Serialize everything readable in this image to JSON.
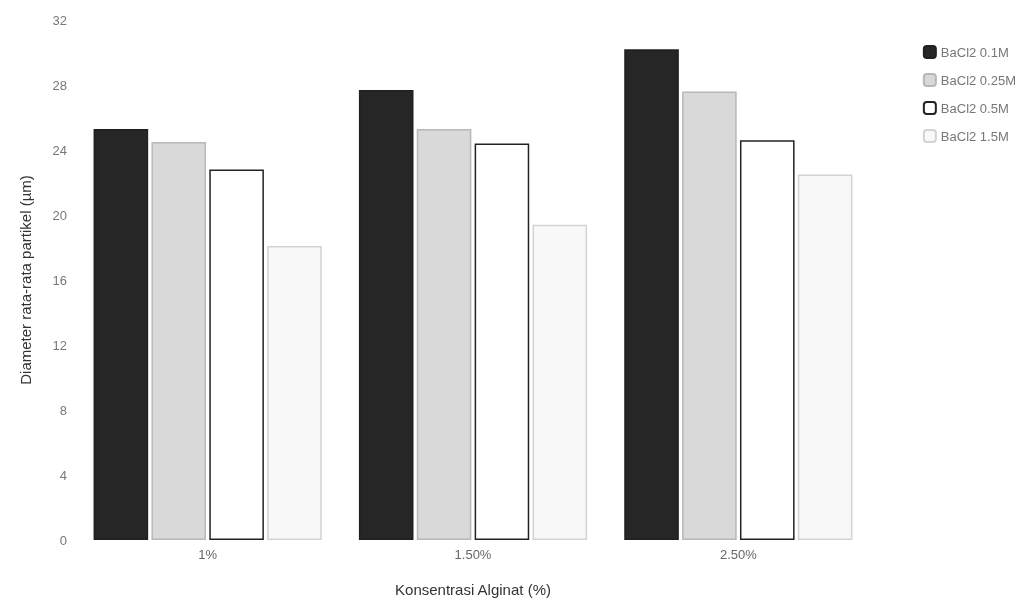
{
  "chart_data": {
    "type": "bar",
    "xlabel": "Konsentrasi Alginat (%)",
    "ylabel": "Diameter rata-rata partikel (µm)",
    "categories": [
      "1%",
      "1.50%",
      "2.50%"
    ],
    "series": [
      {
        "name": "BaCl2 0.1M",
        "color": "#262626",
        "values": [
          25.3,
          27.7,
          30.2
        ]
      },
      {
        "name": "BaCl2 0.25M",
        "color": "#d9d9d9",
        "values": [
          24.5,
          25.3,
          27.6
        ]
      },
      {
        "name": "BaCl2 0.5M",
        "color": "#ffffff",
        "values": [
          22.8,
          24.4,
          24.6
        ]
      },
      {
        "name": "BaCl2 1.5M",
        "color": "#f8f8f8",
        "values": [
          18.1,
          19.4,
          22.5
        ]
      }
    ],
    "ylim": [
      0,
      32
    ],
    "yticks": [
      0,
      4,
      8,
      12,
      16,
      20,
      24,
      28,
      32
    ],
    "grid": false,
    "legend": "right"
  }
}
